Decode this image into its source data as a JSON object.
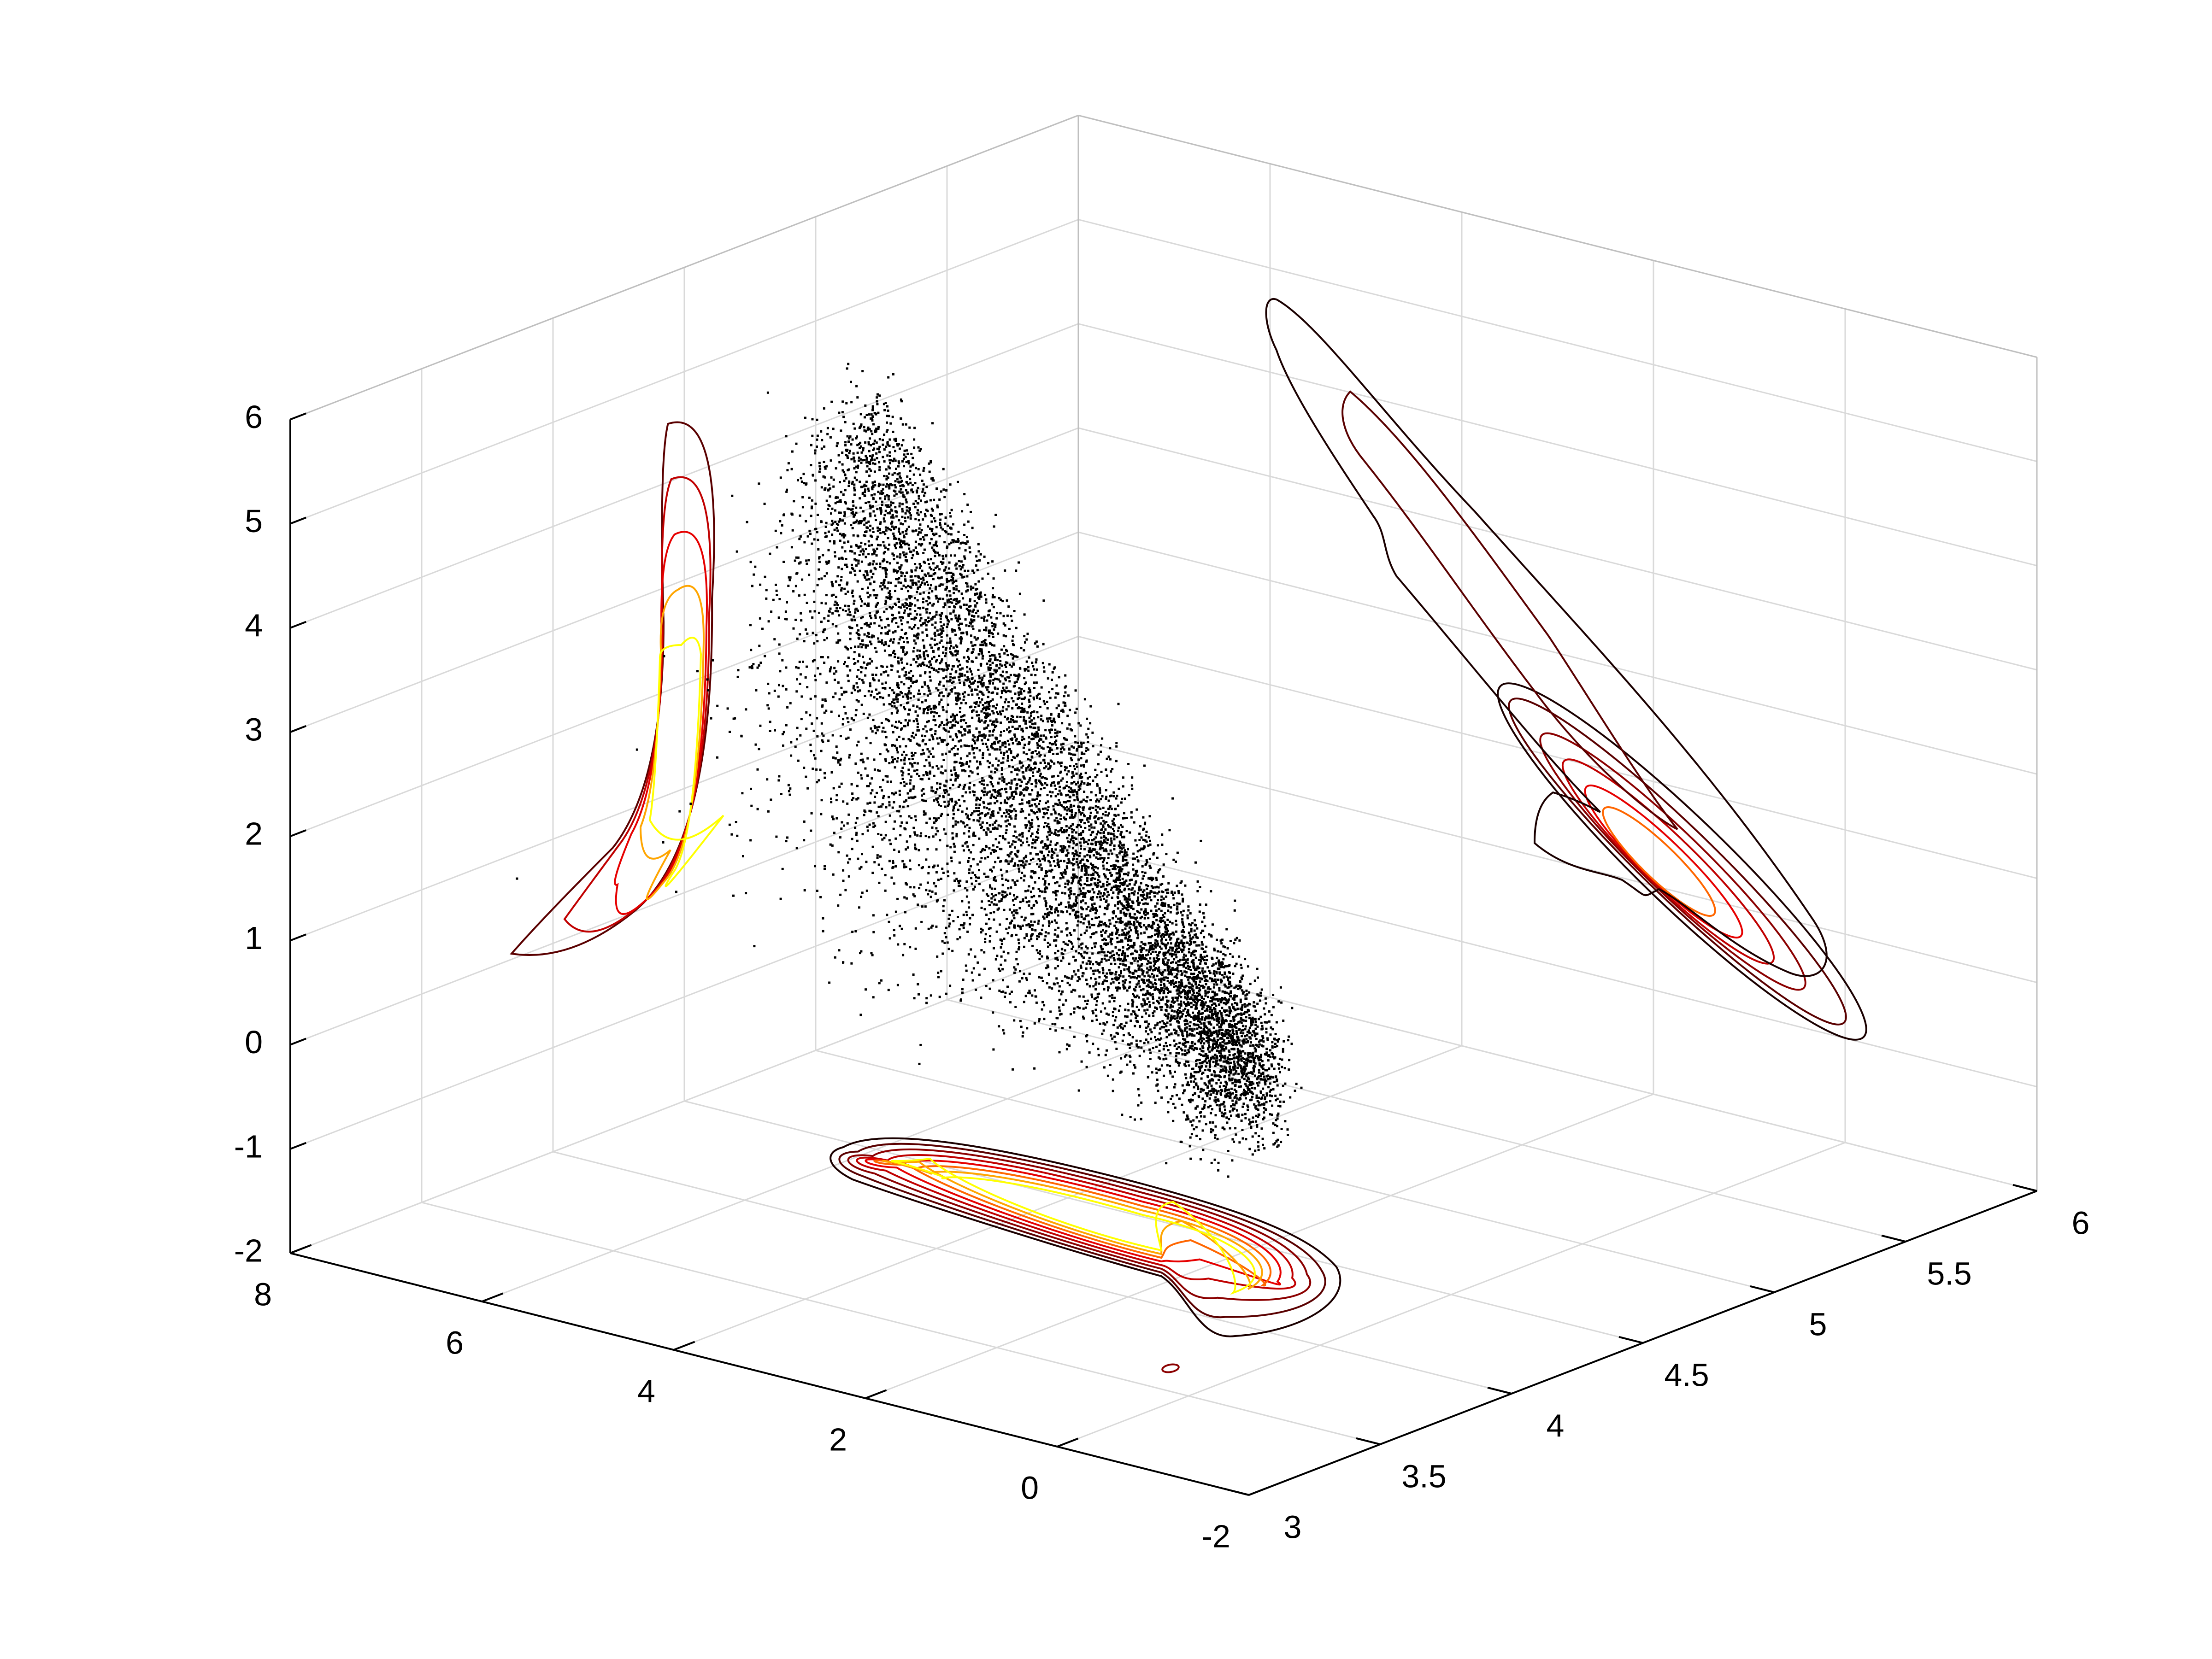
{
  "chart_data": {
    "type": "scatter",
    "title": "",
    "xlabel": "",
    "ylabel": "",
    "zlabel": "",
    "projection": "3d",
    "grid": true,
    "legend": false,
    "axes": {
      "x": {
        "range": [
          3,
          6
        ],
        "ticks": [
          3,
          3.5,
          4,
          4.5,
          5,
          5.5,
          6
        ],
        "tick_labels": [
          "3",
          "3.5",
          "4",
          "4.5",
          "5",
          "5.5",
          "6"
        ]
      },
      "y": {
        "range": [
          -2,
          8
        ],
        "ticks": [
          -2,
          0,
          2,
          4,
          6,
          8
        ],
        "tick_labels": [
          "-2",
          "0",
          "2",
          "4",
          "6",
          "8"
        ]
      },
      "z": {
        "range": [
          -2,
          6
        ],
        "ticks": [
          -2,
          -1,
          0,
          1,
          2,
          3,
          4,
          5,
          6
        ],
        "tick_labels": [
          "-2",
          "-1",
          "0",
          "1",
          "2",
          "3",
          "4",
          "5",
          "6"
        ]
      }
    },
    "point_cloud": {
      "marker": "dot",
      "color": "#000000",
      "approx_count": 9000,
      "trend": [
        {
          "x": 3.6,
          "y": 6.0,
          "z": 4.8
        },
        {
          "x": 4.2,
          "y": 3.5,
          "z": 2.6
        },
        {
          "x": 4.8,
          "y": 1.5,
          "z": 0.8
        },
        {
          "x": 5.1,
          "y": 0.6,
          "z": 0.2
        }
      ]
    },
    "contour_projections": [
      {
        "plane": "x=3 (y-z)",
        "levels": 4
      },
      {
        "plane": "y=8 (x-z)",
        "levels": 6
      },
      {
        "plane": "z=-2 (x-y)",
        "levels": 7
      }
    ],
    "contour_colors": [
      "#1a0000",
      "#5a0000",
      "#8b0000",
      "#c00000",
      "#e60000",
      "#ff6600",
      "#ffa500",
      "#ffcc00",
      "#ffff00"
    ]
  }
}
